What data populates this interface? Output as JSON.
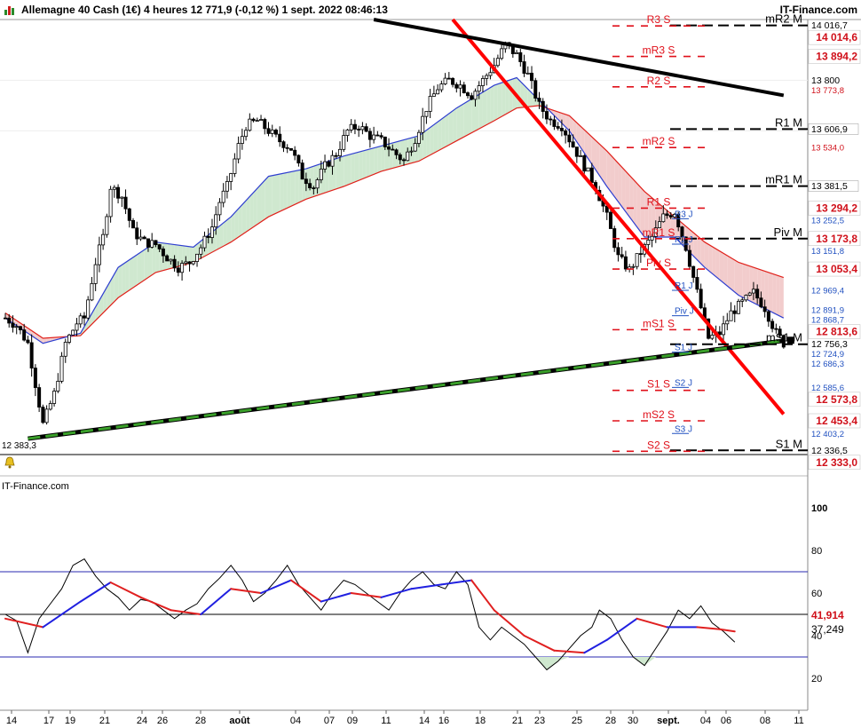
{
  "header": {
    "title": "Allemagne 40 Cash (1€) 4 heures 12 771,9 (-0,12 %) 1 sept. 2022 08:46:13",
    "brand": "IT-Finance.com"
  },
  "indicator_brand": "IT-Finance.com",
  "low_label": "12 383,3",
  "colors": {
    "candles": "#000000",
    "ma_fast": "#2f3fd0",
    "ma_slow": "#e0201a",
    "cloud_up": "#cfe8cf",
    "cloud_down": "#f2cccc",
    "trend_red": "#ff0000",
    "trend_black": "#000000",
    "support_green": "#3aa02a",
    "level_red": "#e0101a",
    "level_blue": "#2050c0",
    "osc_line": "#000000",
    "osc_signal_up": "#2020e0",
    "osc_signal_down": "#e02020",
    "osc_fill": "#cfe8cf"
  },
  "chart_data": [
    {
      "type": "candlestick",
      "title": "Allemagne 40 Cash (1€) 4 heures 12 771,9 (-0,12 %) 1 sept. 2022 08:46:13",
      "ylim": [
        12320,
        14040
      ],
      "x_ticks": [
        "14",
        "17",
        "19",
        "21",
        "24",
        "26",
        "28",
        "août",
        "04",
        "07",
        "09",
        "11",
        "14",
        "16",
        "18",
        "21",
        "23",
        "25",
        "28",
        "30",
        "sept.",
        "04",
        "06",
        "08",
        "11"
      ],
      "y_ticks": [
        "13 800",
        "13 600"
      ],
      "right_axis_labels": [
        {
          "text": "14 016,7",
          "style": "plain"
        },
        {
          "text": "14 014,6",
          "style": "red-box"
        },
        {
          "text": "13 894,2",
          "style": "red-box"
        },
        {
          "text": "13 800",
          "style": "plain"
        },
        {
          "text": "13 773,8",
          "style": "small-red"
        },
        {
          "text": "13 606,9",
          "style": "plain-box"
        },
        {
          "text": "13 534,0",
          "style": "small-red"
        },
        {
          "text": "13 381,5",
          "style": "plain-box"
        },
        {
          "text": "13 294,2",
          "style": "red-box"
        },
        {
          "text": "13 252,5",
          "style": "small-blue"
        },
        {
          "text": "13 173,8",
          "style": "red-box"
        },
        {
          "text": "13 151,8",
          "style": "small-blue"
        },
        {
          "text": "13 053,4",
          "style": "red-box"
        },
        {
          "text": "12 969,4",
          "style": "small-blue"
        },
        {
          "text": "12 891,9",
          "style": "small-blue"
        },
        {
          "text": "12 868,7",
          "style": "small-blue"
        },
        {
          "text": "12 813,6",
          "style": "red-box"
        },
        {
          "text": "12 756,3",
          "style": "plain"
        },
        {
          "text": "12 724,9",
          "style": "small-blue"
        },
        {
          "text": "12 686,3",
          "style": "small-blue"
        },
        {
          "text": "12 585,6",
          "style": "small-blue"
        },
        {
          "text": "12 573,8",
          "style": "red-box"
        },
        {
          "text": "12 453,4",
          "style": "red-box"
        },
        {
          "text": "12 403,2",
          "style": "small-blue"
        },
        {
          "text": "12 336,5",
          "style": "plain"
        },
        {
          "text": "12 333,0",
          "style": "red-box"
        }
      ],
      "pivot_levels": [
        {
          "label": "mR2 M",
          "value": 14016.7,
          "kind": "monthly"
        },
        {
          "label": "R3 S",
          "value": 14014.6,
          "kind": "weekly"
        },
        {
          "label": "mR3 S",
          "value": 13894.2,
          "kind": "weekly"
        },
        {
          "label": "R2 S",
          "value": 13773.8,
          "kind": "weekly"
        },
        {
          "label": "R1 M",
          "value": 13606.9,
          "kind": "monthly"
        },
        {
          "label": "mR2 S",
          "value": 13534.0,
          "kind": "weekly"
        },
        {
          "label": "mR1 M",
          "value": 13381.5,
          "kind": "monthly"
        },
        {
          "label": "R1 S",
          "value": 13294.2,
          "kind": "weekly"
        },
        {
          "label": "R3 J",
          "value": 13252.5,
          "kind": "daily"
        },
        {
          "label": "Piv M",
          "value": 13173.8,
          "kind": "monthly"
        },
        {
          "label": "mR1 S",
          "value": 13173.8,
          "kind": "weekly"
        },
        {
          "label": "R2 J",
          "value": 13151.8,
          "kind": "daily"
        },
        {
          "label": "Piv S",
          "value": 13053.4,
          "kind": "weekly"
        },
        {
          "label": "R1 J",
          "value": 12969.4,
          "kind": "daily"
        },
        {
          "label": "Piv J",
          "value": 12868.7,
          "kind": "daily"
        },
        {
          "label": "mS1 S",
          "value": 12813.6,
          "kind": "weekly"
        },
        {
          "label": "mS1 M",
          "value": 12756.3,
          "kind": "monthly"
        },
        {
          "label": "S1 J",
          "value": 12724.9,
          "kind": "daily"
        },
        {
          "label": "S1 S",
          "value": 12573.8,
          "kind": "weekly"
        },
        {
          "label": "S2 J",
          "value": 12585.6,
          "kind": "daily"
        },
        {
          "label": "mS2 S",
          "value": 12453.4,
          "kind": "weekly"
        },
        {
          "label": "S3 J",
          "value": 12403.2,
          "kind": "daily"
        },
        {
          "label": "S1 M",
          "value": 12336.5,
          "kind": "monthly"
        },
        {
          "label": "S2 S",
          "value": 12333.0,
          "kind": "weekly"
        }
      ],
      "price_path": [
        [
          0,
          12860
        ],
        [
          3,
          12830
        ],
        [
          6,
          12760
        ],
        [
          8,
          12600
        ],
        [
          10,
          12440
        ],
        [
          13,
          12560
        ],
        [
          16,
          12760
        ],
        [
          19,
          12840
        ],
        [
          21,
          12860
        ],
        [
          24,
          13080
        ],
        [
          26,
          13180
        ],
        [
          28,
          13380
        ],
        [
          31,
          13340
        ],
        [
          34,
          13200
        ],
        [
          37,
          13160
        ],
        [
          40,
          13150
        ],
        [
          43,
          13100
        ],
        [
          46,
          13060
        ],
        [
          49,
          13080
        ],
        [
          52,
          13140
        ],
        [
          55,
          13220
        ],
        [
          57,
          13320
        ],
        [
          59,
          13380
        ],
        [
          62,
          13540
        ],
        [
          64,
          13620
        ],
        [
          67,
          13640
        ],
        [
          70,
          13600
        ],
        [
          73,
          13560
        ],
        [
          76,
          13530
        ],
        [
          79,
          13420
        ],
        [
          82,
          13380
        ],
        [
          85,
          13460
        ],
        [
          88,
          13510
        ],
        [
          91,
          13600
        ],
        [
          94,
          13620
        ],
        [
          97,
          13580
        ],
        [
          100,
          13560
        ],
        [
          103,
          13520
        ],
        [
          106,
          13480
        ],
        [
          109,
          13570
        ],
        [
          112,
          13690
        ],
        [
          115,
          13770
        ],
        [
          118,
          13800
        ],
        [
          121,
          13780
        ],
        [
          124,
          13740
        ],
        [
          127,
          13800
        ],
        [
          130,
          13860
        ],
        [
          133,
          13940
        ],
        [
          136,
          13900
        ],
        [
          139,
          13820
        ],
        [
          142,
          13700
        ],
        [
          145,
          13640
        ],
        [
          148,
          13620
        ],
        [
          151,
          13540
        ],
        [
          154,
          13460
        ],
        [
          157,
          13380
        ],
        [
          160,
          13260
        ],
        [
          163,
          13100
        ],
        [
          166,
          13050
        ],
        [
          169,
          13120
        ],
        [
          172,
          13180
        ],
        [
          175,
          13260
        ],
        [
          178,
          13280
        ],
        [
          181,
          13140
        ],
        [
          184,
          12960
        ],
        [
          187,
          12780
        ],
        [
          190,
          12800
        ],
        [
          193,
          12880
        ],
        [
          196,
          12920
        ],
        [
          199,
          12960
        ],
        [
          202,
          12900
        ],
        [
          205,
          12800
        ],
        [
          207,
          12760
        ]
      ],
      "ma_fast_path": [
        [
          0,
          12860
        ],
        [
          10,
          12760
        ],
        [
          20,
          12800
        ],
        [
          30,
          13060
        ],
        [
          40,
          13160
        ],
        [
          50,
          13140
        ],
        [
          60,
          13260
        ],
        [
          70,
          13420
        ],
        [
          80,
          13450
        ],
        [
          90,
          13500
        ],
        [
          100,
          13540
        ],
        [
          110,
          13580
        ],
        [
          120,
          13690
        ],
        [
          130,
          13780
        ],
        [
          136,
          13810
        ],
        [
          142,
          13720
        ],
        [
          150,
          13600
        ],
        [
          160,
          13380
        ],
        [
          170,
          13180
        ],
        [
          178,
          13180
        ],
        [
          186,
          13060
        ],
        [
          195,
          12950
        ],
        [
          207,
          12860
        ]
      ],
      "ma_slow_path": [
        [
          0,
          12880
        ],
        [
          10,
          12780
        ],
        [
          20,
          12790
        ],
        [
          30,
          12940
        ],
        [
          40,
          13040
        ],
        [
          50,
          13080
        ],
        [
          60,
          13160
        ],
        [
          70,
          13260
        ],
        [
          80,
          13330
        ],
        [
          90,
          13380
        ],
        [
          100,
          13440
        ],
        [
          110,
          13480
        ],
        [
          120,
          13560
        ],
        [
          130,
          13640
        ],
        [
          136,
          13690
        ],
        [
          142,
          13700
        ],
        [
          150,
          13660
        ],
        [
          160,
          13520
        ],
        [
          170,
          13360
        ],
        [
          178,
          13260
        ],
        [
          186,
          13160
        ],
        [
          195,
          13080
        ],
        [
          207,
          13020
        ]
      ],
      "trendlines": [
        {
          "name": "red-resistance",
          "from": [
            119,
            14040
          ],
          "to": [
            207,
            12480
          ]
        },
        {
          "name": "black-resistance",
          "from": [
            98,
            14040
          ],
          "to": [
            207,
            13740
          ]
        },
        {
          "name": "green-support",
          "from": [
            6,
            12383
          ],
          "to": [
            207,
            12770
          ]
        }
      ]
    },
    {
      "type": "line",
      "title": "",
      "ylim": [
        5,
        105
      ],
      "y_ticks": [
        "100",
        "80",
        "60",
        "40",
        "20"
      ],
      "bands": [
        70,
        50,
        30
      ],
      "right_labels": [
        {
          "text": "41,914",
          "style": "red"
        },
        {
          "text": "37,249",
          "style": "plain"
        }
      ],
      "oscillator": [
        [
          0,
          50
        ],
        [
          3,
          47
        ],
        [
          6,
          32
        ],
        [
          9,
          48
        ],
        [
          12,
          55
        ],
        [
          15,
          62
        ],
        [
          18,
          73
        ],
        [
          21,
          76
        ],
        [
          24,
          68
        ],
        [
          27,
          62
        ],
        [
          30,
          58
        ],
        [
          33,
          52
        ],
        [
          36,
          57
        ],
        [
          39,
          56
        ],
        [
          42,
          52
        ],
        [
          45,
          48
        ],
        [
          48,
          52
        ],
        [
          51,
          55
        ],
        [
          54,
          62
        ],
        [
          57,
          67
        ],
        [
          60,
          73
        ],
        [
          63,
          66
        ],
        [
          66,
          56
        ],
        [
          69,
          60
        ],
        [
          72,
          66
        ],
        [
          75,
          73
        ],
        [
          78,
          64
        ],
        [
          81,
          58
        ],
        [
          84,
          52
        ],
        [
          87,
          60
        ],
        [
          90,
          66
        ],
        [
          93,
          64
        ],
        [
          96,
          60
        ],
        [
          99,
          56
        ],
        [
          102,
          52
        ],
        [
          105,
          60
        ],
        [
          108,
          66
        ],
        [
          111,
          70
        ],
        [
          114,
          64
        ],
        [
          117,
          62
        ],
        [
          120,
          70
        ],
        [
          123,
          64
        ],
        [
          126,
          44
        ],
        [
          129,
          38
        ],
        [
          132,
          44
        ],
        [
          135,
          40
        ],
        [
          138,
          36
        ],
        [
          141,
          30
        ],
        [
          144,
          24
        ],
        [
          147,
          28
        ],
        [
          150,
          34
        ],
        [
          153,
          40
        ],
        [
          156,
          44
        ],
        [
          158,
          52
        ],
        [
          161,
          48
        ],
        [
          164,
          38
        ],
        [
          167,
          30
        ],
        [
          170,
          26
        ],
        [
          173,
          34
        ],
        [
          176,
          42
        ],
        [
          179,
          52
        ],
        [
          182,
          48
        ],
        [
          185,
          54
        ],
        [
          188,
          46
        ],
        [
          191,
          42
        ],
        [
          194,
          37
        ]
      ],
      "signal": [
        [
          0,
          48
        ],
        [
          10,
          44
        ],
        [
          20,
          56
        ],
        [
          28,
          65
        ],
        [
          36,
          58
        ],
        [
          44,
          52
        ],
        [
          52,
          50
        ],
        [
          60,
          62
        ],
        [
          68,
          60
        ],
        [
          76,
          66
        ],
        [
          84,
          56
        ],
        [
          92,
          60
        ],
        [
          100,
          58
        ],
        [
          108,
          62
        ],
        [
          116,
          64
        ],
        [
          124,
          66
        ],
        [
          130,
          52
        ],
        [
          138,
          40
        ],
        [
          146,
          33
        ],
        [
          154,
          32
        ],
        [
          160,
          38
        ],
        [
          168,
          48
        ],
        [
          176,
          44
        ],
        [
          184,
          44
        ],
        [
          190,
          43
        ],
        [
          194,
          42
        ]
      ]
    }
  ]
}
